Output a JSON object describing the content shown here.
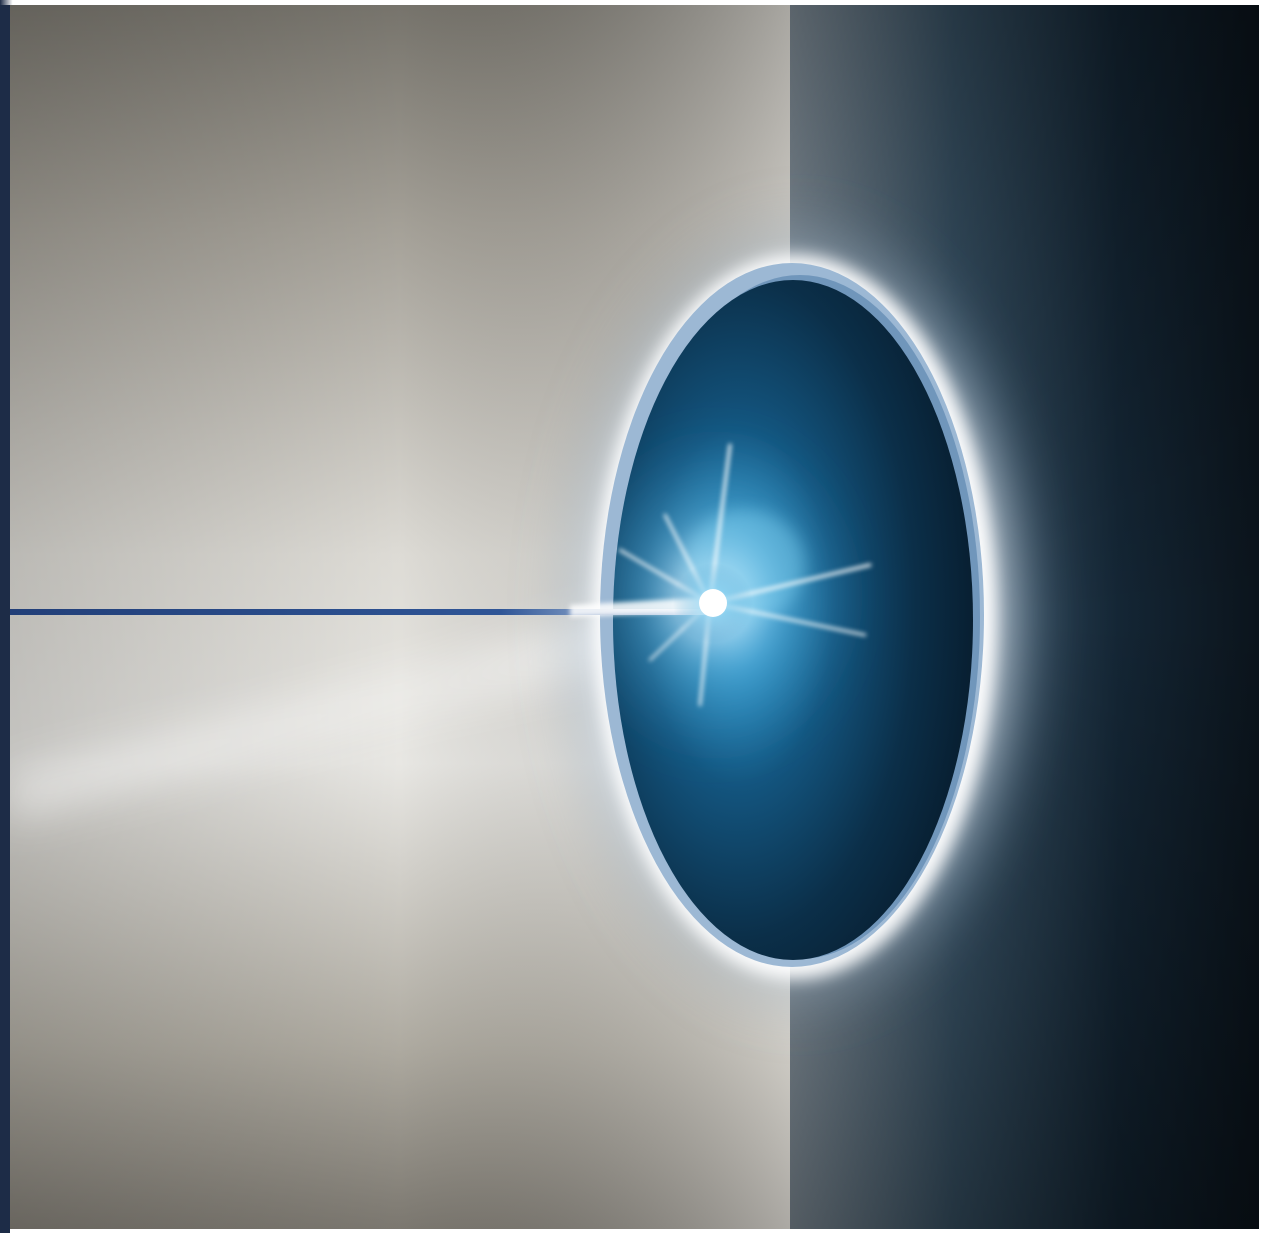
{
  "image": {
    "subject": "glowing-oval-portal-with-light-beam",
    "colors": {
      "frame": "#1d2c47",
      "wall_light": "#e9e7e1",
      "wall_mid": "#b9b4aa",
      "wall_dark_right": "#0f1b24",
      "portal_dark": "#0a1a2a",
      "portal_glow": "#1f6f9e",
      "rim_blue": "#8fb0cf",
      "halo": "#ffffff",
      "beam_line": "#1f3f7a",
      "star_core": "#ffffff"
    }
  }
}
